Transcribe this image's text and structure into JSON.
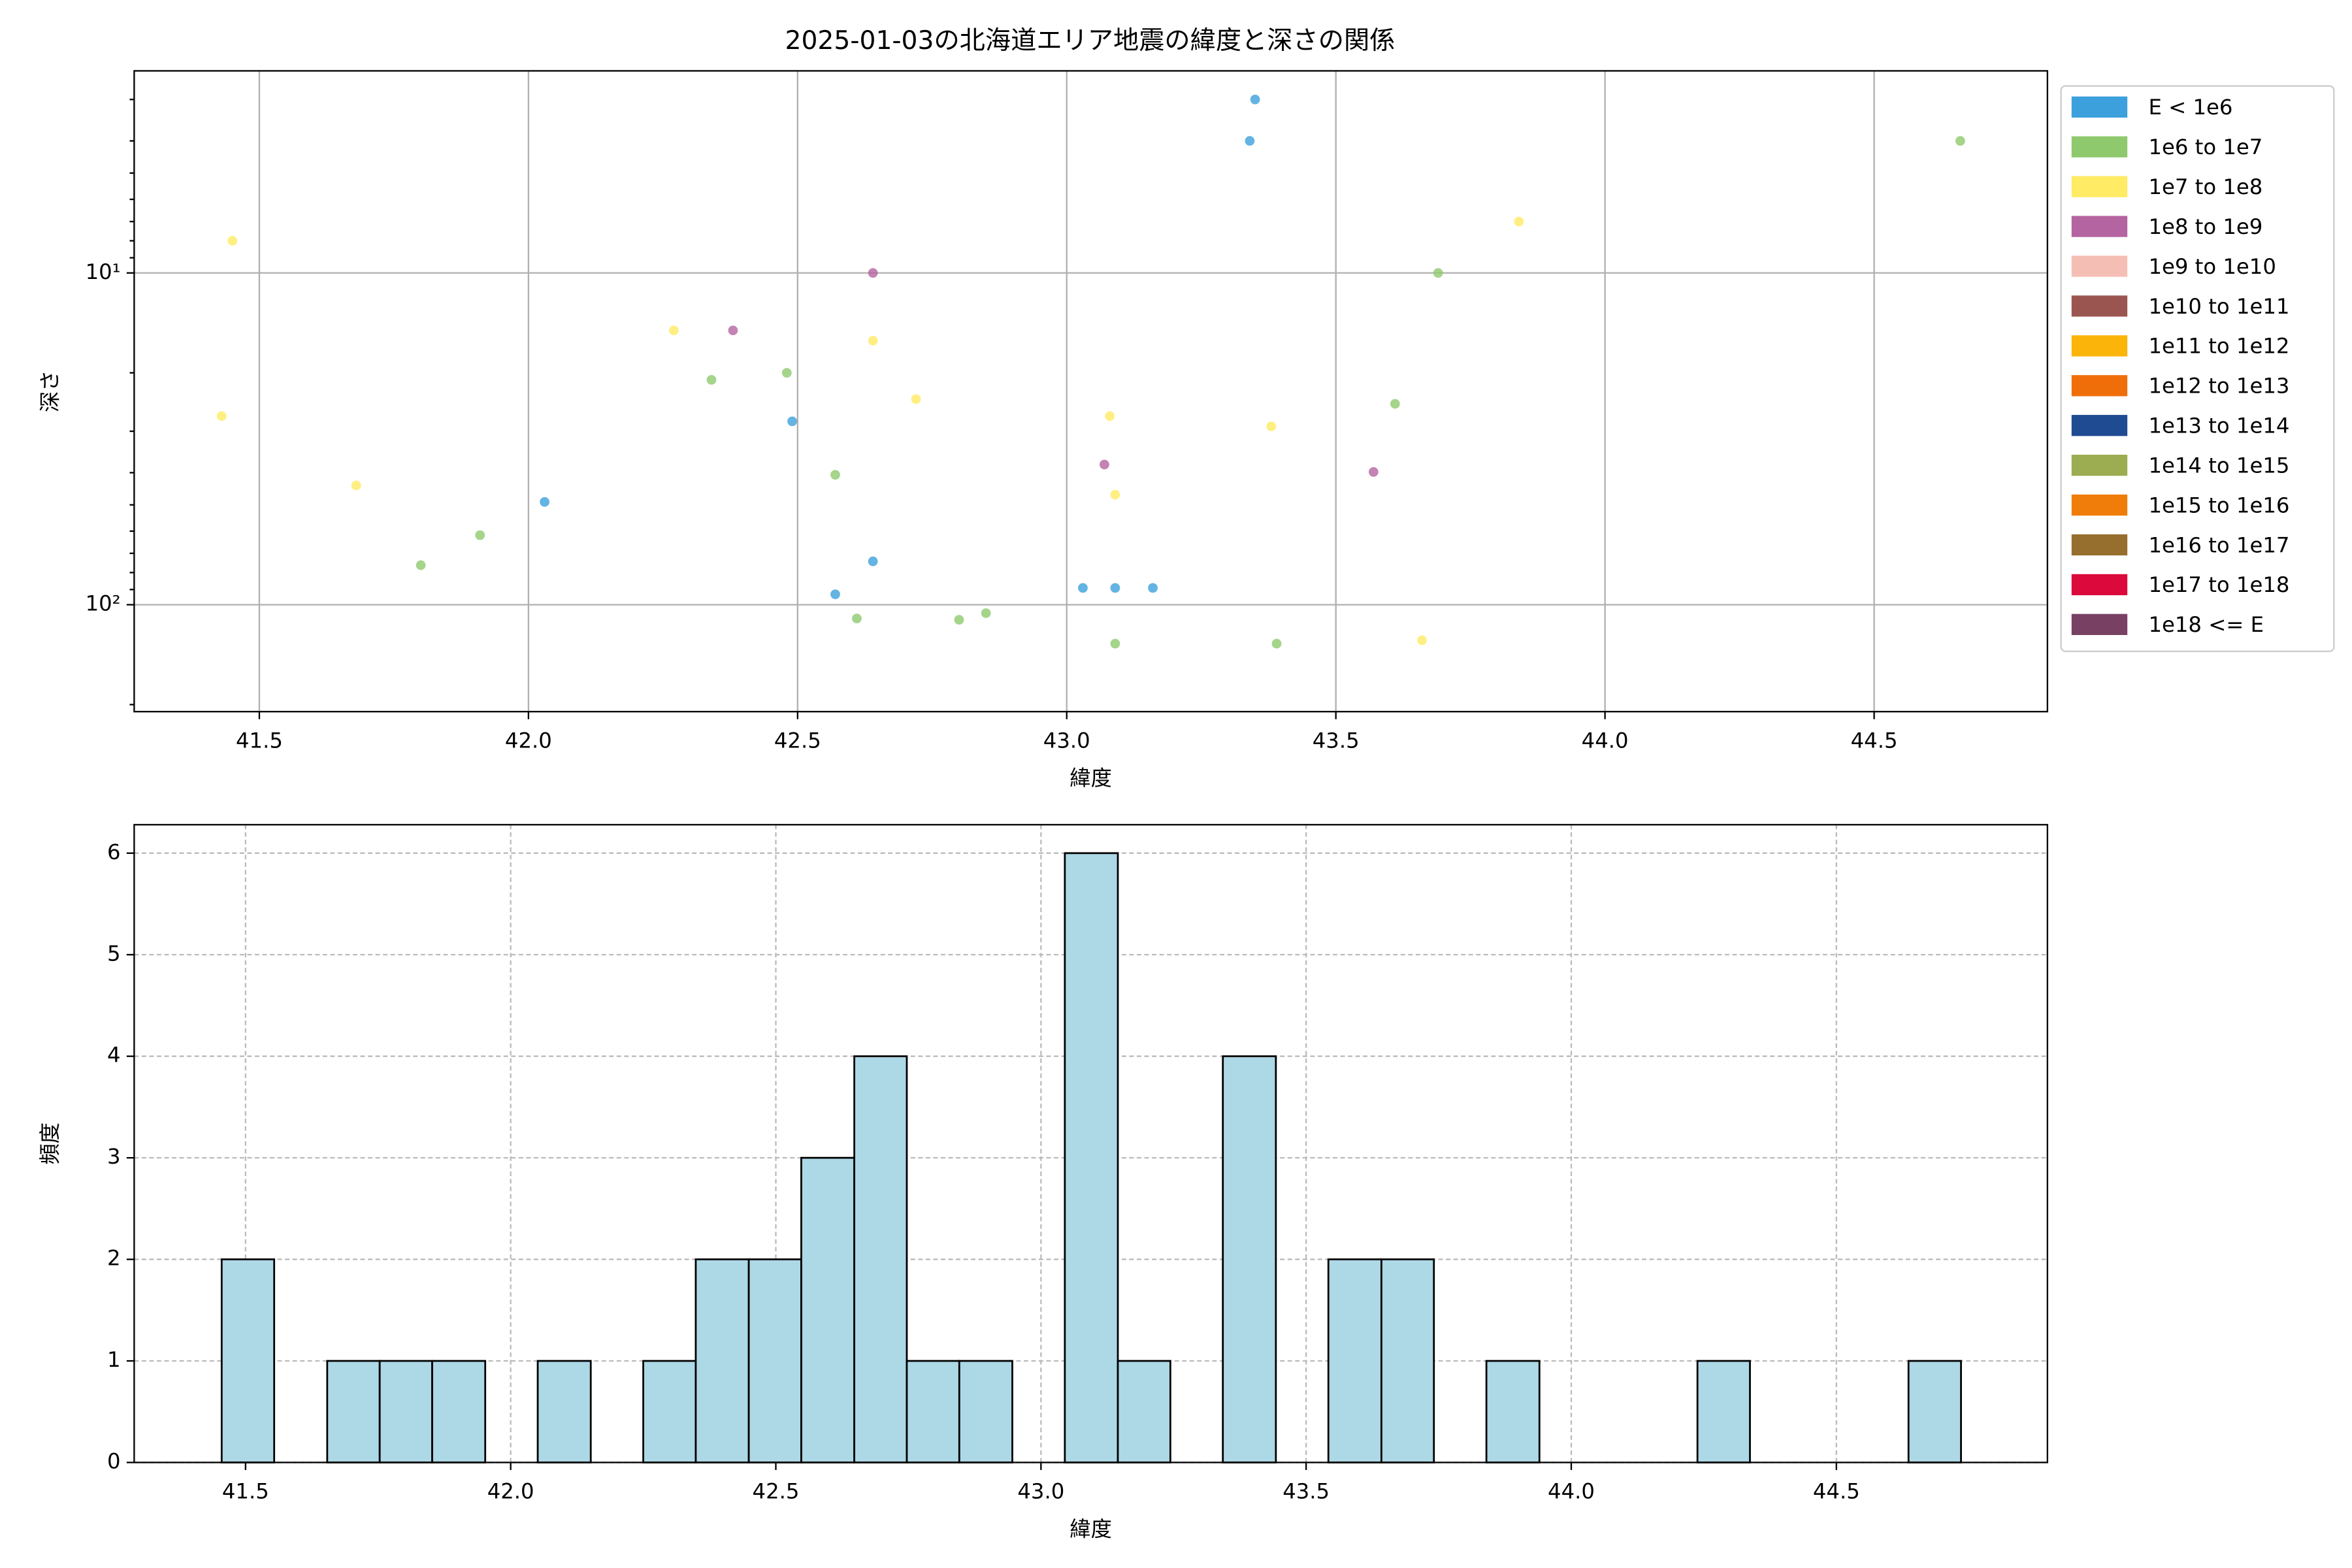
{
  "chart_data": [
    {
      "type": "scatter",
      "title": "2025-01-03の北海道エリア地震の緯度と深さの関係",
      "xlabel": "緯度",
      "ylabel": "深さ",
      "xlim": [
        41.2675,
        44.822
      ],
      "xticks": [
        41.5,
        {
          "value": 42,
          "label": "42.0"
        },
        42.5,
        {
          "value": 43,
          "label": "43.0"
        },
        43.5,
        {
          "value": 44,
          "label": "44.0"
        },
        44.5
      ],
      "ylim": [
        2.46,
        210
      ],
      "y_log": true,
      "y_inverted": true,
      "yticks": [
        {
          "value": 10,
          "label": "10¹"
        },
        {
          "value": 100,
          "label": "10²"
        }
      ],
      "yminorticks": [
        3,
        4,
        5,
        6,
        7,
        8,
        9,
        20,
        30,
        40,
        50,
        60,
        70,
        80,
        90,
        200
      ],
      "grid": true,
      "grid_style": "solid",
      "legend": "outside-upper-right",
      "series": [
        {
          "name": "E < 1e6",
          "color": "#3ca0dc",
          "x": [
            43.35,
            43.34,
            42.49,
            42.03,
            42.64,
            42.57,
            43.03,
            43.09,
            43.16
          ],
          "values": [
            3.0,
            4.0,
            28,
            49,
            74,
            93,
            89,
            89,
            89
          ]
        },
        {
          "name": "1e6 to 1e7",
          "color": "#8fc96e",
          "x": [
            44.66,
            43.69,
            43.61,
            42.48,
            42.34,
            42.57,
            41.91,
            41.8,
            42.61,
            42.8,
            42.85,
            43.09,
            43.39
          ],
          "values": [
            4.0,
            10,
            24.8,
            20,
            21,
            40.6,
            61.7,
            76,
            110,
            111,
            106,
            131,
            131
          ]
        },
        {
          "name": "1e7 to 1e8",
          "color": "#ffeb64",
          "x": [
            41.45,
            41.43,
            41.68,
            42.27,
            42.64,
            42.72,
            43.08,
            43.09,
            43.38,
            43.84,
            43.66
          ],
          "values": [
            8.0,
            27,
            43.7,
            14.9,
            16,
            24,
            27,
            46.6,
            29,
            7.0,
            128
          ]
        },
        {
          "name": "1e8 to 1e9",
          "color": "#b464a0",
          "x": [
            42.64,
            42.38,
            43.07,
            43.57
          ],
          "values": [
            10,
            14.9,
            37.8,
            39.8
          ]
        },
        {
          "name": "1e9 to 1e10",
          "color": "#f5beb4",
          "x": [],
          "values": []
        },
        {
          "name": "1e10 to 1e11",
          "color": "#9b5550",
          "x": [],
          "values": []
        },
        {
          "name": "1e11 to 1e12",
          "color": "#fab40a",
          "x": [],
          "values": []
        },
        {
          "name": "1e12 to 1e13",
          "color": "#f06e0a",
          "x": [],
          "values": []
        },
        {
          "name": "1e13 to 1e14",
          "color": "#1e4b91",
          "x": [],
          "values": []
        },
        {
          "name": "1e14 to 1e15",
          "color": "#9bad50",
          "x": [],
          "values": []
        },
        {
          "name": "1e15 to 1e16",
          "color": "#f07d0a",
          "x": [],
          "values": []
        },
        {
          "name": "1e16 to 1e17",
          "color": "#966e2d",
          "x": [],
          "values": []
        },
        {
          "name": "1e17 to 1e18",
          "color": "#dc0a3c",
          "x": [],
          "values": []
        },
        {
          "name": "1e18 <= E",
          "color": "#784164",
          "x": [],
          "values": []
        }
      ]
    },
    {
      "type": "histogram",
      "xlabel": "緯度",
      "ylabel": "頻度",
      "xlim": [
        41.29,
        44.898
      ],
      "xticks": [
        41.5,
        {
          "value": 42,
          "label": "42.0"
        },
        42.5,
        {
          "value": 43,
          "label": "43.0"
        },
        43.5,
        {
          "value": 44,
          "label": "44.0"
        },
        44.5
      ],
      "ylim": [
        0,
        6.28
      ],
      "yticks": [
        0,
        1,
        2,
        3,
        4,
        5,
        6
      ],
      "grid": true,
      "grid_style": "dashed",
      "color": "#add8e6",
      "edgecolor": "#000000",
      "bins": [
        41.455,
        41.554,
        41.654,
        41.753,
        41.852,
        41.952,
        42.051,
        42.151,
        42.25,
        42.349,
        42.449,
        42.548,
        42.648,
        42.747,
        42.846,
        42.946,
        43.045,
        43.145,
        43.244,
        43.343,
        43.443,
        43.542,
        43.642,
        43.741,
        43.84,
        43.94,
        44.039,
        44.139,
        44.238,
        44.337,
        44.437,
        44.536,
        44.636,
        44.735
      ],
      "values": [
        2,
        0,
        1,
        1,
        1,
        0,
        1,
        0,
        1,
        2,
        2,
        3,
        4,
        1,
        1,
        0,
        6,
        1,
        0,
        4,
        0,
        2,
        2,
        0,
        1,
        0,
        0,
        0,
        1,
        0,
        0,
        0,
        1
      ]
    }
  ]
}
